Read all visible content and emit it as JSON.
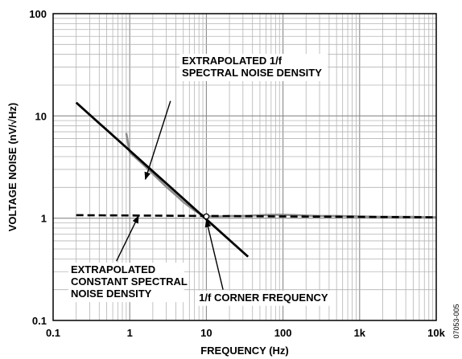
{
  "chart_data": {
    "type": "line",
    "xscale": "log",
    "yscale": "log",
    "xlim": [
      0.1,
      10000
    ],
    "ylim": [
      0.1,
      100
    ],
    "grid": true,
    "xlabel": "FREQUENCY (Hz)",
    "ylabel": "VOLTAGE NOISE (nV/√Hz)",
    "x_tick_labels": [
      {
        "value": 0.1,
        "label": "0.1"
      },
      {
        "value": 1,
        "label": "1"
      },
      {
        "value": 10,
        "label": "10"
      },
      {
        "value": 100,
        "label": "100"
      },
      {
        "value": 1000,
        "label": "1k"
      },
      {
        "value": 10000,
        "label": "10k"
      }
    ],
    "y_tick_labels": [
      {
        "value": 0.1,
        "label": "0.1"
      },
      {
        "value": 1,
        "label": "1"
      },
      {
        "value": 10,
        "label": "10"
      },
      {
        "value": 100,
        "label": "100"
      }
    ],
    "series": [
      {
        "style": "measured",
        "color": "#8c8c8c",
        "x": [
          0.9,
          1,
          1.5,
          2,
          3,
          4,
          5,
          6,
          7,
          8,
          9,
          10,
          12,
          15,
          20,
          30,
          50,
          70,
          100,
          150,
          200,
          300,
          500,
          1000,
          2000,
          5000,
          10000
        ],
        "y": [
          6.8,
          4.4,
          3.35,
          2.72,
          2.03,
          1.68,
          1.44,
          1.3,
          1.19,
          1.12,
          1.07,
          1.05,
          1.04,
          1.04,
          1.05,
          1.05,
          1.07,
          1.08,
          1.08,
          1.07,
          1.06,
          1.05,
          1.05,
          1.04,
          1.03,
          1.03,
          1.02
        ]
      },
      {
        "style": "extrapolated-1/f",
        "color": "#000000",
        "x": [
          0.2,
          35
        ],
        "y": [
          13.5,
          0.42
        ]
      },
      {
        "style": "extrapolated-constant",
        "color": "#000000",
        "dashed": true,
        "x": [
          0.2,
          10000
        ],
        "y": [
          1.07,
          1.02
        ]
      }
    ],
    "corner_point": {
      "x": 10,
      "y": 1.04
    },
    "annotations": [
      {
        "lines": [
          "EXTRAPOLATED 1/f",
          "SPECTRAL NOISE DENSITY"
        ],
        "text_pos": [
          4.8,
          32
        ],
        "arrow_from": [
          3.4,
          14
        ],
        "arrow_to": [
          1.6,
          2.4
        ]
      },
      {
        "lines": [
          "EXTRAPOLATED",
          "CONSTANT SPECTRAL",
          "NOISE DENSITY"
        ],
        "text_pos": [
          0.17,
          0.29
        ],
        "arrow_from": [
          0.67,
          0.38
        ],
        "arrow_to": [
          1.3,
          1.05
        ]
      },
      {
        "lines": [
          "1/f CORNER FREQUENCY"
        ],
        "text_pos": [
          8,
          0.155
        ],
        "arrow_from": [
          16.5,
          0.2
        ],
        "arrow_to": [
          10,
          0.96
        ]
      }
    ],
    "figure_id": "07053-005"
  }
}
